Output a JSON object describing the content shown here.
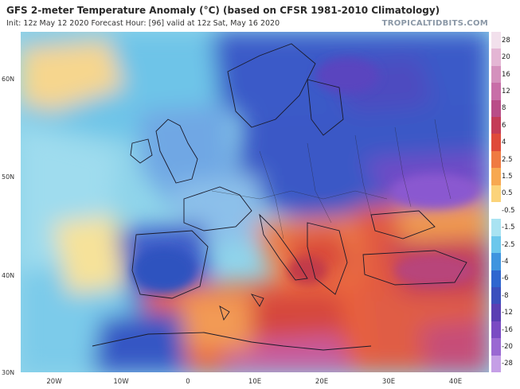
{
  "header": {
    "title": "GFS 2-meter Temperature Anomaly (°C) (based on CFSR 1981-2010 Climatology)",
    "subtitle": "Init: 12z May 12 2020   Forecast Hour: [96]   valid at 12z Sat, May 16 2020",
    "brand": "TROPICALTIDBITS.COM"
  },
  "map": {
    "lat_labels": [
      "60N",
      "50N",
      "40N",
      "30N"
    ],
    "lon_labels": [
      "20W",
      "10W",
      "0",
      "10E",
      "20E",
      "30E",
      "40E"
    ]
  },
  "colorbar": {
    "labels": [
      "28",
      "20",
      "16",
      "12",
      "8",
      "6",
      "4",
      "2.5",
      "1.5",
      "0.5",
      "-0.5",
      "-1.5",
      "-2.5",
      "-4",
      "-6",
      "-8",
      "-12",
      "-16",
      "-20",
      "-28"
    ],
    "colors": [
      "#f2e0ec",
      "#e4b6d4",
      "#d491bd",
      "#c86ea8",
      "#b94d88",
      "#c43c57",
      "#df4a3a",
      "#ef7a42",
      "#f7a851",
      "#fbd37a",
      "#ffffff",
      "#a9e3f2",
      "#6cc7ec",
      "#3f94df",
      "#2f66cf",
      "#3b4fbd",
      "#5a3fb3",
      "#7a4bc3",
      "#9a68d2",
      "#c59fe6"
    ]
  }
}
